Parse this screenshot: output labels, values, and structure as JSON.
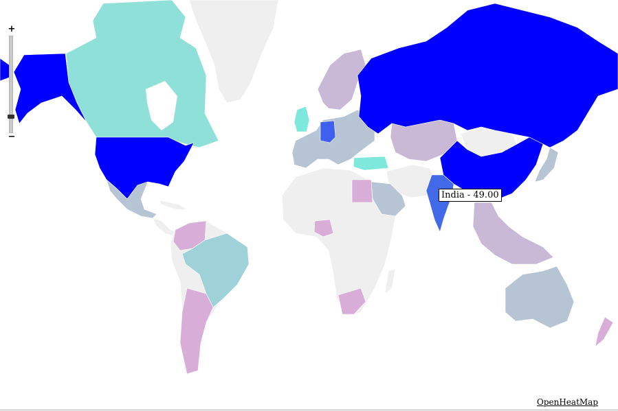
{
  "map": {
    "colors": {
      "no_data": "#efefef",
      "level_1": "#d8aed8",
      "level_2": "#c9b9d6",
      "level_3": "#b7c4d4",
      "level_4": "#9fd2d8",
      "level_5": "#8fe0d8",
      "level_6": "#7fe8dc",
      "level_high": "#3e5ff0",
      "level_max": "#0000ff",
      "india": "#4169e8"
    },
    "regions": [
      {
        "id": "canada",
        "color_key": "level_5"
      },
      {
        "id": "greenland",
        "color_key": "no_data"
      },
      {
        "id": "alaska",
        "color_key": "level_max"
      },
      {
        "id": "usa",
        "color_key": "level_max"
      },
      {
        "id": "mexico",
        "color_key": "level_3"
      },
      {
        "id": "central-america",
        "color_key": "no_data"
      },
      {
        "id": "venezuela",
        "color_key": "level_1"
      },
      {
        "id": "brazil",
        "color_key": "level_4"
      },
      {
        "id": "argentina",
        "color_key": "level_1"
      },
      {
        "id": "scandinavia",
        "color_key": "level_2"
      },
      {
        "id": "uk",
        "color_key": "level_6"
      },
      {
        "id": "germany",
        "color_key": "level_high"
      },
      {
        "id": "europe",
        "color_key": "level_3"
      },
      {
        "id": "turkey",
        "color_key": "level_6"
      },
      {
        "id": "russia",
        "color_key": "level_max"
      },
      {
        "id": "kazakhstan",
        "color_key": "level_2"
      },
      {
        "id": "mongolia",
        "color_key": "no_data"
      },
      {
        "id": "china",
        "color_key": "level_max"
      },
      {
        "id": "india",
        "color_key": "india"
      },
      {
        "id": "japan",
        "color_key": "level_3"
      },
      {
        "id": "africa",
        "color_key": "no_data"
      },
      {
        "id": "egypt",
        "color_key": "level_1"
      },
      {
        "id": "nigeria",
        "color_key": "level_1"
      },
      {
        "id": "south-africa",
        "color_key": "level_1"
      },
      {
        "id": "saudi-arabia",
        "color_key": "level_3"
      },
      {
        "id": "iran",
        "color_key": "no_data"
      },
      {
        "id": "southeast-asia",
        "color_key": "level_2"
      },
      {
        "id": "australia",
        "color_key": "level_3"
      },
      {
        "id": "new-zealand",
        "color_key": "level_1"
      }
    ]
  },
  "zoom": {
    "plus_label": "+",
    "minus_label": "−",
    "level": 0.15
  },
  "tooltip": {
    "text": "India - 49.00"
  },
  "credit": {
    "text": "OpenHeatMap"
  }
}
